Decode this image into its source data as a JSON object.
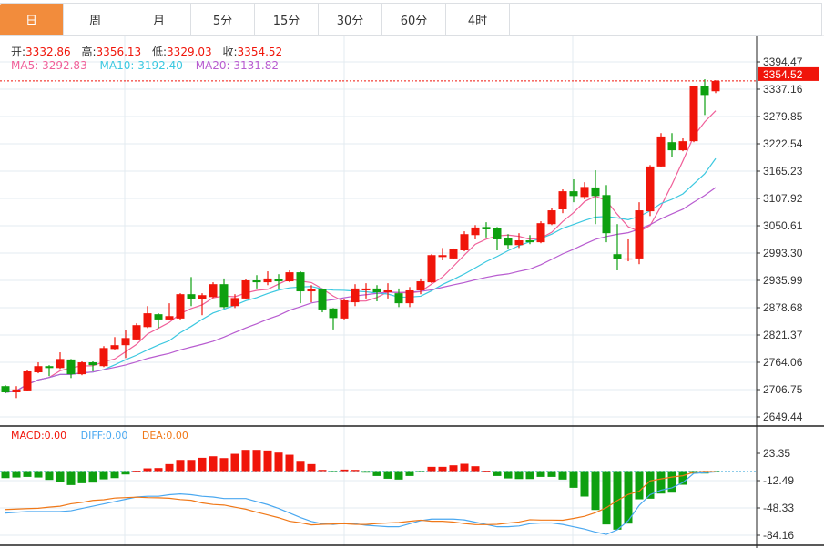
{
  "tabs": [
    "日",
    "周",
    "月",
    "5分",
    "15分",
    "30分",
    "60分",
    "4时"
  ],
  "active_tab": 0,
  "ohlc_info": {
    "open_label": "开:",
    "open": "3332.86",
    "high_label": "高:",
    "high": "3356.13",
    "low_label": "低:",
    "low": "3329.03",
    "close_label": "收:",
    "close": "3354.52"
  },
  "ma_info": {
    "ma5_label": "MA5:",
    "ma5": "3292.83",
    "ma10_label": "MA10:",
    "ma10": "3192.40",
    "ma20_label": "MA20:",
    "ma20": "3131.82"
  },
  "macd_info": {
    "macd": "MACD:0.00",
    "diff": "DIFF:0.00",
    "dea": "DEA:0.00"
  },
  "colors": {
    "up": "#f0150a",
    "down": "#0ea010",
    "ma5": "#f0609a",
    "ma10": "#3cc8e0",
    "ma20": "#b85cd0",
    "diff": "#4aa8f0",
    "dea": "#f07818",
    "accent": "#f28c3c"
  },
  "chart_data": [
    {
      "type": "candlestick",
      "title": "",
      "ylim": [
        2649.44,
        3394.47
      ],
      "yticks": [
        "3394.47",
        "3337.16",
        "3279.85",
        "3222.54",
        "3165.23",
        "3107.92",
        "3050.61",
        "2993.30",
        "2935.99",
        "2878.68",
        "2821.37",
        "2764.06",
        "2706.75",
        "2649.44"
      ],
      "last_price": "3354.52",
      "grid": true,
      "ohlc_fields": [
        "open",
        "close",
        "high",
        "low"
      ],
      "ohlc": [
        [
          2714,
          2701,
          2716,
          2699
        ],
        [
          2701,
          2707,
          2714,
          2689
        ],
        [
          2705,
          2745,
          2747,
          2703
        ],
        [
          2743,
          2756,
          2764,
          2741
        ],
        [
          2756,
          2752,
          2758,
          2735
        ],
        [
          2752,
          2771,
          2785,
          2750
        ],
        [
          2770,
          2739,
          2771,
          2731
        ],
        [
          2739,
          2764,
          2766,
          2737
        ],
        [
          2764,
          2758,
          2766,
          2745
        ],
        [
          2756,
          2794,
          2798,
          2754
        ],
        [
          2792,
          2800,
          2817,
          2791
        ],
        [
          2800,
          2815,
          2831,
          2773
        ],
        [
          2812,
          2842,
          2846,
          2810
        ],
        [
          2838,
          2867,
          2882,
          2836
        ],
        [
          2865,
          2854,
          2867,
          2836
        ],
        [
          2854,
          2861,
          2888,
          2852
        ],
        [
          2856,
          2907,
          2909,
          2854
        ],
        [
          2907,
          2896,
          2943,
          2882
        ],
        [
          2896,
          2905,
          2909,
          2863
        ],
        [
          2901,
          2928,
          2932,
          2899
        ],
        [
          2928,
          2880,
          2940,
          2877
        ],
        [
          2882,
          2899,
          2907,
          2878
        ],
        [
          2898,
          2936,
          2938,
          2896
        ],
        [
          2936,
          2932,
          2947,
          2919
        ],
        [
          2932,
          2940,
          2955,
          2926
        ],
        [
          2938,
          2934,
          2949,
          2917
        ],
        [
          2934,
          2953,
          2957,
          2932
        ],
        [
          2953,
          2913,
          2955,
          2888
        ],
        [
          2913,
          2917,
          2926,
          2890
        ],
        [
          2917,
          2875,
          2919,
          2869
        ],
        [
          2877,
          2857,
          2878,
          2833
        ],
        [
          2856,
          2894,
          2896,
          2854
        ],
        [
          2890,
          2919,
          2928,
          2882
        ],
        [
          2915,
          2919,
          2930,
          2898
        ],
        [
          2919,
          2911,
          2926,
          2892
        ],
        [
          2911,
          2915,
          2930,
          2898
        ],
        [
          2909,
          2888,
          2919,
          2880
        ],
        [
          2888,
          2915,
          2922,
          2880
        ],
        [
          2915,
          2934,
          2940,
          2907
        ],
        [
          2932,
          2989,
          2991,
          2930
        ],
        [
          2985,
          2989,
          3004,
          2978
        ],
        [
          2982,
          3001,
          3003,
          2980
        ],
        [
          2999,
          3033,
          3039,
          2997
        ],
        [
          3031,
          3047,
          3052,
          3022
        ],
        [
          3048,
          3043,
          3058,
          3026
        ],
        [
          3045,
          3022,
          3048,
          2999
        ],
        [
          3024,
          3010,
          3033,
          3003
        ],
        [
          3010,
          3020,
          3035,
          3004
        ],
        [
          3020,
          3016,
          3031,
          3012
        ],
        [
          3016,
          3056,
          3060,
          3014
        ],
        [
          3054,
          3083,
          3087,
          3052
        ],
        [
          3085,
          3123,
          3127,
          3077
        ],
        [
          3123,
          3113,
          3148,
          3100
        ],
        [
          3111,
          3132,
          3142,
          3106
        ],
        [
          3131,
          3113,
          3167,
          3054
        ],
        [
          3115,
          3035,
          3136,
          3016
        ],
        [
          2991,
          2980,
          3054,
          2957
        ],
        [
          2980,
          2982,
          3022,
          2976
        ],
        [
          2982,
          3083,
          3100,
          2970
        ],
        [
          3081,
          3175,
          3178,
          3071
        ],
        [
          3175,
          3238,
          3245,
          3173
        ],
        [
          3226,
          3209,
          3245,
          3194
        ],
        [
          3209,
          3228,
          3234,
          3207
        ],
        [
          3228,
          3343,
          3344,
          3226
        ],
        [
          3343,
          3325,
          3358,
          3283
        ],
        [
          3332.86,
          3354.52,
          3356.13,
          3329.03
        ]
      ],
      "series": [
        {
          "name": "MA5",
          "period": 5
        },
        {
          "name": "MA10",
          "period": 10
        },
        {
          "name": "MA20",
          "period": 20
        }
      ]
    },
    {
      "type": "bar+line",
      "title": "MACD",
      "ylim": [
        -84.16,
        23.35
      ],
      "yticks": [
        "23.35",
        "-12.49",
        "-48.33",
        "-84.16"
      ],
      "macd": [
        -9.2,
        -8.4,
        -7.6,
        -8.4,
        -11.5,
        -13.9,
        -18.3,
        -15.9,
        -15.1,
        -10.8,
        -9.2,
        -4.4,
        0.4,
        3.6,
        4,
        9.2,
        14.7,
        14.7,
        17.5,
        19.5,
        17.1,
        22.7,
        27.9,
        27.9,
        27.1,
        24.3,
        21.5,
        13.5,
        9.2,
        1.6,
        -1.2,
        2,
        1.6,
        -2,
        -6.4,
        -10,
        -11.1,
        -6.4,
        -1.2,
        5.6,
        5.6,
        7.6,
        9.6,
        6.4,
        0.4,
        -6.4,
        -9.6,
        -10.4,
        -10.4,
        -7.6,
        -7.6,
        -11.1,
        -21.9,
        -33.4,
        -51,
        -70,
        -76.8,
        -68.9,
        -37,
        -36.2,
        -29.5,
        -28.3,
        -17.9,
        -3.2,
        -3.2,
        -0.4
      ],
      "diff": [
        -55,
        -54,
        -53,
        -53,
        -53,
        -53,
        -52,
        -49,
        -46,
        -43,
        -40,
        -37,
        -34,
        -33,
        -33,
        -31,
        -30,
        -31,
        -33,
        -34,
        -36,
        -36,
        -36,
        -40,
        -44,
        -49,
        -55,
        -61,
        -66,
        -69,
        -70,
        -68,
        -69,
        -71,
        -72,
        -73,
        -73,
        -69,
        -65,
        -63,
        -63,
        -63,
        -64,
        -67,
        -70,
        -73,
        -73,
        -72,
        -69,
        -68,
        -68,
        -70,
        -73,
        -76,
        -80,
        -83,
        -77,
        -65,
        -45,
        -31,
        -25,
        -22,
        -15,
        -3,
        -2,
        -1
      ]
    }
  ]
}
